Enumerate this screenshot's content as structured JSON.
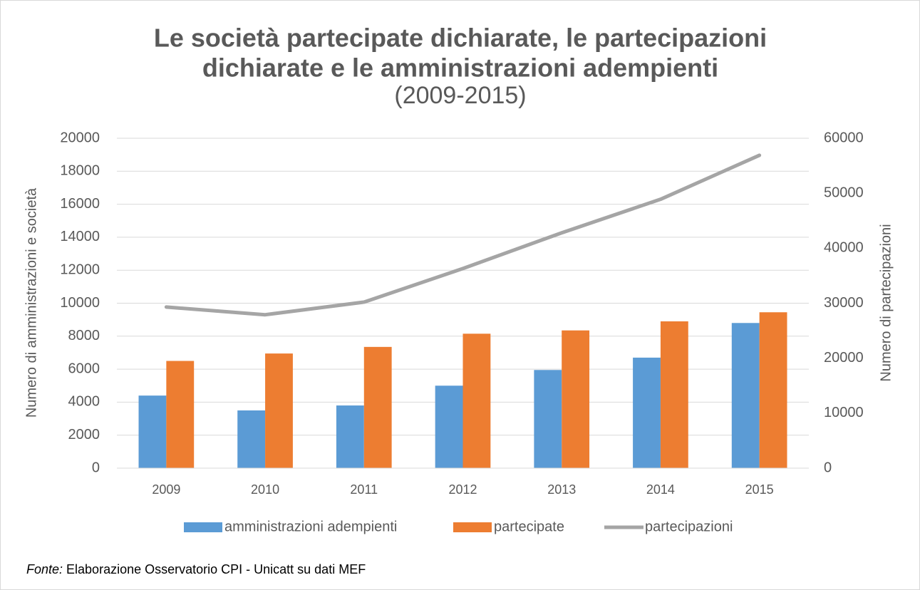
{
  "chart_data": {
    "type": "bar-line",
    "title": [
      "Le società partecipate dichiarate, le partecipazioni",
      "dichiarate e le amministrazioni adempienti"
    ],
    "subtitle": "(2009-2015)",
    "y_label": "Numero di amministrazioni e società",
    "y2_label": "Numero di partecipazioni",
    "categories": [
      "2009",
      "2010",
      "2011",
      "2012",
      "2013",
      "2014",
      "2015"
    ],
    "series": [
      {
        "name": "amministrazioni adempienti",
        "color": "#5b9bd5",
        "type": "bar",
        "values": [
          4400,
          3500,
          3800,
          5000,
          5950,
          6700,
          8800
        ]
      },
      {
        "name": "partecipate",
        "color": "#ed7d31",
        "type": "bar",
        "values": [
          6500,
          6950,
          7350,
          8150,
          8350,
          8900,
          9450
        ]
      },
      {
        "name": "partecipazioni",
        "color": "#a5a5a5",
        "type": "line",
        "axis": "y2",
        "values": [
          29300,
          27900,
          30200,
          36300,
          42800,
          48900,
          56900
        ]
      }
    ],
    "ylim": [
      0,
      20000
    ],
    "yticks": [
      0,
      2000,
      4000,
      6000,
      8000,
      10000,
      12000,
      14000,
      16000,
      18000,
      20000
    ],
    "y2lim": [
      0,
      60000
    ],
    "y2ticks": [
      0,
      10000,
      20000,
      30000,
      40000,
      50000,
      60000
    ],
    "grid": true,
    "legend": "bottom"
  },
  "source": {
    "label": "Fonte:",
    "text": "Elaborazione Osservatorio CPI - Unicatt su dati MEF"
  }
}
